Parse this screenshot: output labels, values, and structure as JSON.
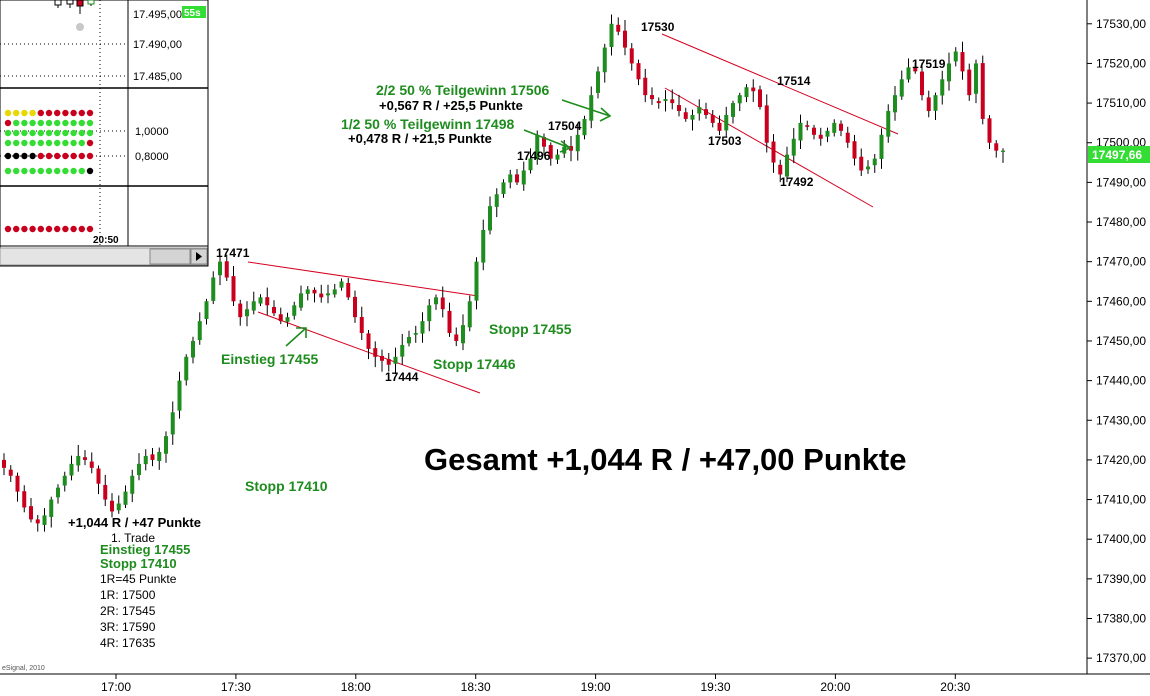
{
  "chart_data": {
    "type": "candlestick",
    "y_axis": {
      "ticks": [
        "17530,00",
        "17520,00",
        "17510,00",
        "17500,00",
        "17490,00",
        "17480,00",
        "17470,00",
        "17460,00",
        "17450,00",
        "17440,00",
        "17430,00",
        "17420,00",
        "17410,00",
        "17400,00",
        "17390,00",
        "17380,00",
        "17370,00"
      ],
      "range": [
        17366,
        17536
      ],
      "current_price": "17497,66"
    },
    "x_axis": {
      "ticks": [
        "17:00",
        "17:30",
        "18:00",
        "18:30",
        "19:00",
        "19:30",
        "20:00",
        "20:30"
      ]
    },
    "closes": [
      17418,
      17416,
      17412,
      17408,
      17405,
      17404,
      17406,
      17410,
      17413,
      17416,
      17419,
      17421,
      17420,
      17418,
      17414,
      17410,
      17407,
      17409,
      17412,
      17416,
      17419,
      17421,
      17420,
      17422,
      17426,
      17432,
      17440,
      17446,
      17450,
      17455,
      17460,
      17466,
      17470,
      17466,
      17460,
      17456,
      17458,
      17460,
      17461,
      17459,
      17457,
      17455,
      17456,
      17459,
      17462,
      17463,
      17462,
      17461,
      17462,
      17463,
      17465,
      17461,
      17456,
      17452,
      17448,
      17446,
      17445,
      17444,
      17446,
      17449,
      17451,
      17452,
      17455,
      17459,
      17461,
      17458,
      17452,
      17450,
      17454,
      17460,
      17470,
      17478,
      17484,
      17487,
      17490,
      17492,
      17490,
      17493,
      17496,
      17502,
      17499,
      17496,
      17497,
      17499,
      17498,
      17502,
      17506,
      17512,
      17518,
      17524,
      17530,
      17528,
      17524,
      17520,
      17516,
      17512,
      17511,
      17510,
      17511,
      17510,
      17508,
      17506,
      17507,
      17509,
      17507,
      17505,
      17503,
      17507,
      17510,
      17512,
      17514,
      17513,
      17509,
      17500,
      17495,
      17492,
      17497,
      17501,
      17505,
      17504,
      17502,
      17501,
      17503,
      17505,
      17503,
      17500,
      17496,
      17493,
      17494,
      17496,
      17502,
      17508,
      17512,
      17516,
      17519,
      17518,
      17512,
      17508,
      17512,
      17516,
      17520,
      17523,
      17518,
      17512,
      17520,
      17506,
      17500,
      17498,
      17498
    ],
    "overlay_labels": {
      "extreme_prices": [
        "17471",
        "17444",
        "17496",
        "17504",
        "17530",
        "17514",
        "17503",
        "17492",
        "17519"
      ],
      "einstieg": "Einstieg 17455",
      "stopp_1": "Stopp 17410",
      "stopp_2": "Stopp 17446",
      "stopp_3": "Stopp 17455",
      "teilgewinn_1": "1/2 50 % Teilgewinn 17498",
      "teilgewinn_1_result": "+0,478 R / +21,5 Punkte",
      "teilgewinn_2": "2/2 50 % Teilgewinn 17506",
      "teilgewinn_2_result": "+0,567 R / +25,5 Punkte",
      "total": "Gesamt +1,044 R / +47,00 Punkte"
    },
    "trade_box": {
      "result": "+1,044 R / +47 Punkte",
      "title": "1. Trade",
      "einstieg": "Einstieg 17455",
      "stopp": "Stopp 17410",
      "r_value": "1R=45 Punkte",
      "targets": [
        "1R: 17500",
        "2R: 17545",
        "3R: 17590",
        "4R: 17635"
      ]
    },
    "colors": {
      "up": "#1e8c1e",
      "down": "#c8001e",
      "trendline": "#d4001e",
      "annotation": "#1e8c1e",
      "price_badge": "#33dd33"
    }
  },
  "inset_window": {
    "price_ticks": [
      "17.495,00",
      "17.490,00",
      "17.485,00"
    ],
    "badge": "55s",
    "indicator_ticks": [
      "1,0000",
      "0,8000"
    ],
    "time_label": "20:50"
  },
  "watermark": "eSignal, 2010"
}
